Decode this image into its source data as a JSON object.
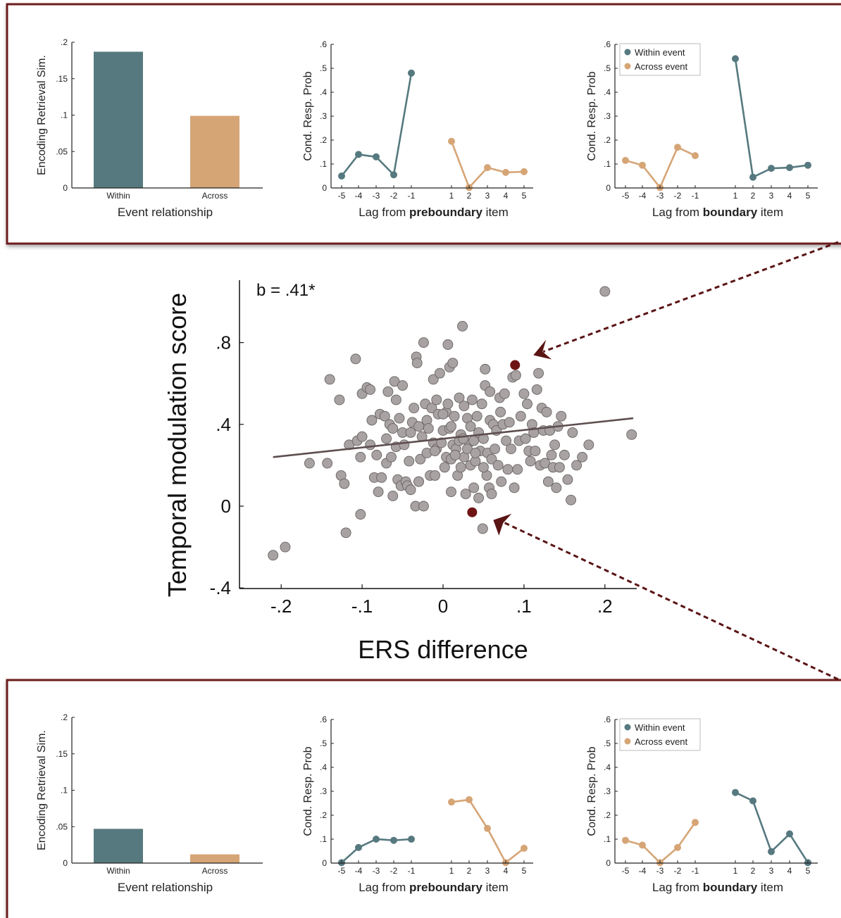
{
  "colors": {
    "within": "#56797f",
    "across": "#d6a576",
    "point": "#a9a2a2",
    "highlight": "#6e1414",
    "fit_line": "#5e4e4f",
    "frame": "#6e1c1c",
    "arrow": "#5a1414"
  },
  "chart_data": [
    {
      "panel": "top-bar",
      "type": "bar",
      "categories": [
        "Within",
        "Across"
      ],
      "values": [
        0.187,
        0.099
      ],
      "xlabel": "Event relationship",
      "ylabel": "Encoding Retrieval Sim.",
      "ylim": [
        0,
        0.2
      ],
      "yticks": [
        "0",
        ".05",
        ".1",
        ".15",
        ".2"
      ]
    },
    {
      "panel": "top-preboundary",
      "type": "line",
      "xlabel_prefix": "Lag from ",
      "xlabel_bold": "preboundary",
      "xlabel_suffix": " item",
      "ylabel": "Cond. Resp. Prob",
      "ylim": [
        0,
        0.6
      ],
      "yticks": [
        "0",
        ".1",
        ".2",
        ".3",
        ".4",
        ".5",
        ".6"
      ],
      "series": [
        {
          "group": "within",
          "x": [
            -5,
            -4,
            -3,
            -2,
            -1
          ],
          "values": [
            0.05,
            0.14,
            0.13,
            0.055,
            0.48
          ]
        },
        {
          "group": "across",
          "x": [
            1,
            2,
            3,
            4,
            5
          ],
          "values": [
            0.195,
            0.002,
            0.085,
            0.065,
            0.068
          ]
        }
      ]
    },
    {
      "panel": "top-boundary",
      "type": "line",
      "xlabel_prefix": "Lag from ",
      "xlabel_bold": "boundary",
      "xlabel_suffix": " item",
      "ylabel": "Cond. Resp. Prob",
      "ylim": [
        0,
        0.6
      ],
      "yticks": [
        "0",
        ".1",
        ".2",
        ".3",
        ".4",
        ".5",
        ".6"
      ],
      "legend": [
        "Within event",
        "Across event"
      ],
      "legend_position": "top-left",
      "series": [
        {
          "group": "across",
          "x": [
            -5,
            -4,
            -3,
            -2,
            -1
          ],
          "values": [
            0.115,
            0.095,
            0.002,
            0.17,
            0.135
          ]
        },
        {
          "group": "within",
          "x": [
            1,
            2,
            3,
            4,
            5
          ],
          "values": [
            0.54,
            0.045,
            0.082,
            0.085,
            0.095
          ]
        }
      ]
    },
    {
      "panel": "main-scatter",
      "type": "scatter",
      "xlabel": "ERS difference",
      "ylabel": "Temporal modulation score",
      "xlim": [
        -0.25,
        0.25
      ],
      "ylim": [
        -0.4,
        1.1
      ],
      "xticks": [
        "-.2",
        "-.1",
        "0",
        ".1",
        ".2"
      ],
      "yticks": [
        "-.4",
        "0",
        ".4",
        ".8"
      ],
      "annotation": "b = .41*",
      "fit_line": {
        "x": [
          -0.21,
          0.235
        ],
        "y": [
          0.24,
          0.43
        ]
      },
      "highlight_points": [
        [
          0.089,
          0.69
        ],
        [
          0.036,
          -0.03
        ]
      ],
      "points": [
        [
          -0.21,
          -0.24
        ],
        [
          -0.195,
          -0.2
        ],
        [
          -0.165,
          0.21
        ],
        [
          -0.143,
          0.21
        ],
        [
          -0.14,
          0.62
        ],
        [
          -0.128,
          0.52
        ],
        [
          -0.126,
          0.15
        ],
        [
          -0.122,
          0.11
        ],
        [
          -0.12,
          -0.13
        ],
        [
          -0.116,
          0.3
        ],
        [
          -0.108,
          0.72
        ],
        [
          -0.106,
          0.32
        ],
        [
          -0.102,
          0.24
        ],
        [
          -0.1,
          0.34
        ],
        [
          -0.102,
          -0.04
        ],
        [
          -0.1,
          0.55
        ],
        [
          -0.094,
          0.58
        ],
        [
          -0.09,
          0.57
        ],
        [
          -0.09,
          0.3
        ],
        [
          -0.088,
          0.42
        ],
        [
          -0.085,
          0.14
        ],
        [
          -0.082,
          0.25
        ],
        [
          -0.08,
          0.07
        ],
        [
          -0.078,
          0.45
        ],
        [
          -0.076,
          0.14
        ],
        [
          -0.072,
          0.44
        ],
        [
          -0.07,
          0.33
        ],
        [
          -0.07,
          0.21
        ],
        [
          -0.068,
          0.56
        ],
        [
          -0.066,
          0.4
        ],
        [
          -0.064,
          0.24
        ],
        [
          -0.062,
          0.38
        ],
        [
          -0.062,
          0.05
        ],
        [
          -0.06,
          0.61
        ],
        [
          -0.058,
          0.52
        ],
        [
          -0.058,
          0.29
        ],
        [
          -0.056,
          0.13
        ],
        [
          -0.054,
          0.43
        ],
        [
          -0.052,
          0.1
        ],
        [
          -0.05,
          0.59
        ],
        [
          -0.05,
          0.36
        ],
        [
          -0.048,
          0.3
        ],
        [
          -0.046,
          0.12
        ],
        [
          -0.044,
          0.1
        ],
        [
          -0.042,
          0.22
        ],
        [
          -0.04,
          0.08
        ],
        [
          -0.04,
          0.36
        ],
        [
          -0.038,
          0.41
        ],
        [
          -0.036,
          0.48
        ],
        [
          -0.034,
          0.0
        ],
        [
          -0.033,
          0.73
        ],
        [
          -0.032,
          0.7
        ],
        [
          -0.03,
          0.12
        ],
        [
          -0.03,
          0.39
        ],
        [
          -0.028,
          0.23
        ],
        [
          -0.026,
          0.34
        ],
        [
          -0.024,
          0.8
        ],
        [
          -0.024,
          0.0
        ],
        [
          -0.022,
          0.5
        ],
        [
          -0.02,
          0.42
        ],
        [
          -0.02,
          0.26
        ],
        [
          -0.018,
          0.38
        ],
        [
          -0.016,
          0.15
        ],
        [
          -0.014,
          0.48
        ],
        [
          -0.012,
          0.62
        ],
        [
          -0.012,
          0.31
        ],
        [
          -0.01,
          0.15
        ],
        [
          -0.008,
          0.52
        ],
        [
          -0.008,
          0.28
        ],
        [
          -0.006,
          0.45
        ],
        [
          -0.004,
          0.65
        ],
        [
          -0.002,
          0.31
        ],
        [
          0.0,
          0.37
        ],
        [
          0.002,
          0.19
        ],
        [
          0.004,
          0.46
        ],
        [
          0.004,
          0.24
        ],
        [
          0.006,
          0.79
        ],
        [
          0.006,
          0.5
        ],
        [
          0.008,
          0.68
        ],
        [
          0.008,
          0.38
        ],
        [
          0.01,
          0.23
        ],
        [
          0.01,
          0.07
        ],
        [
          0.012,
          0.7
        ],
        [
          0.012,
          0.3
        ],
        [
          0.014,
          0.44
        ],
        [
          0.016,
          0.28
        ],
        [
          0.018,
          0.15
        ],
        [
          0.02,
          0.53
        ],
        [
          0.022,
          0.19
        ],
        [
          0.022,
          0.35
        ],
        [
          0.024,
          0.88
        ],
        [
          0.026,
          0.49
        ],
        [
          0.026,
          0.24
        ],
        [
          0.028,
          0.06
        ],
        [
          0.03,
          0.43
        ],
        [
          0.032,
          0.31
        ],
        [
          0.034,
          0.2
        ],
        [
          0.034,
          0.39
        ],
        [
          0.036,
          0.52
        ],
        [
          0.038,
          0.32
        ],
        [
          0.038,
          0.09
        ],
        [
          0.04,
          0.22
        ],
        [
          0.042,
          0.44
        ],
        [
          0.044,
          0.36
        ],
        [
          0.044,
          0.04
        ],
        [
          0.046,
          0.27
        ],
        [
          0.048,
          0.5
        ],
        [
          0.05,
          0.33
        ],
        [
          0.052,
          0.67
        ],
        [
          0.052,
          0.59
        ],
        [
          0.054,
          0.15
        ],
        [
          0.055,
          0.26
        ],
        [
          0.057,
          0.09
        ],
        [
          0.058,
          0.42
        ],
        [
          0.058,
          0.56
        ],
        [
          0.06,
          0.23
        ],
        [
          0.06,
          0.06
        ],
        [
          0.062,
          0.4
        ],
        [
          0.064,
          0.28
        ],
        [
          0.066,
          0.37
        ],
        [
          0.068,
          0.2
        ],
        [
          0.07,
          0.53
        ],
        [
          0.071,
          0.46
        ],
        [
          0.072,
          0.12
        ],
        [
          0.074,
          0.4
        ],
        [
          0.076,
          0.55
        ],
        [
          0.078,
          0.32
        ],
        [
          0.08,
          0.18
        ],
        [
          0.082,
          0.41
        ],
        [
          0.084,
          0.28
        ],
        [
          0.086,
          0.63
        ],
        [
          0.088,
          0.09
        ],
        [
          0.09,
          0.64
        ],
        [
          0.092,
          0.18
        ],
        [
          0.094,
          0.32
        ],
        [
          0.096,
          0.44
        ],
        [
          0.1,
          0.55
        ],
        [
          0.102,
          0.33
        ],
        [
          0.104,
          0.5
        ],
        [
          0.106,
          0.27
        ],
        [
          0.108,
          0.22
        ],
        [
          0.11,
          0.4
        ],
        [
          0.112,
          0.36
        ],
        [
          0.114,
          0.27
        ],
        [
          0.116,
          0.57
        ],
        [
          0.118,
          0.65
        ],
        [
          0.12,
          0.2
        ],
        [
          0.122,
          0.48
        ],
        [
          0.124,
          0.37
        ],
        [
          0.126,
          0.21
        ],
        [
          0.128,
          0.46
        ],
        [
          0.13,
          0.12
        ],
        [
          0.132,
          0.37
        ],
        [
          0.134,
          0.25
        ],
        [
          0.136,
          0.19
        ],
        [
          0.138,
          0.3
        ],
        [
          0.14,
          0.09
        ],
        [
          0.142,
          0.39
        ],
        [
          0.144,
          0.19
        ],
        [
          0.146,
          0.44
        ],
        [
          0.15,
          0.25
        ],
        [
          0.154,
          0.13
        ],
        [
          0.158,
          0.03
        ],
        [
          0.16,
          0.36
        ],
        [
          0.165,
          0.2
        ],
        [
          0.172,
          0.24
        ],
        [
          0.18,
          0.3
        ],
        [
          0.2,
          1.05
        ],
        [
          0.233,
          0.35
        ],
        [
          0.049,
          -0.11
        ],
        [
          -0.03,
          0.12
        ],
        [
          -0.01,
          0.27
        ],
        [
          0.02,
          0.32
        ],
        [
          0.03,
          0.28
        ],
        [
          0.0,
          0.45
        ],
        [
          0.01,
          0.39
        ],
        [
          0.04,
          0.26
        ],
        [
          0.05,
          0.19
        ],
        [
          0.025,
          0.33
        ],
        [
          0.015,
          0.25
        ]
      ]
    },
    {
      "panel": "bottom-bar",
      "type": "bar",
      "categories": [
        "Within",
        "Across"
      ],
      "values": [
        0.047,
        0.012
      ],
      "xlabel": "Event relationship",
      "ylabel": "Encoding Retrieval Sim.",
      "ylim": [
        0,
        0.2
      ],
      "yticks": [
        "0",
        ".05",
        ".1",
        ".15",
        ".2"
      ]
    },
    {
      "panel": "bottom-preboundary",
      "type": "line",
      "xlabel_prefix": "Lag from ",
      "xlabel_bold": "preboundary",
      "xlabel_suffix": " item",
      "ylabel": "Cond. Resp. Prob",
      "ylim": [
        0,
        0.6
      ],
      "yticks": [
        "0",
        ".1",
        ".2",
        ".3",
        ".4",
        ".5",
        ".6"
      ],
      "series": [
        {
          "group": "within",
          "x": [
            -5,
            -4,
            -3,
            -2,
            -1
          ],
          "values": [
            0.002,
            0.065,
            0.1,
            0.095,
            0.1
          ]
        },
        {
          "group": "across",
          "x": [
            1,
            2,
            3,
            4,
            5
          ],
          "values": [
            0.255,
            0.265,
            0.145,
            0.002,
            0.062
          ]
        }
      ]
    },
    {
      "panel": "bottom-boundary",
      "type": "line",
      "xlabel_prefix": "Lag from ",
      "xlabel_bold": "boundary",
      "xlabel_suffix": " item",
      "ylabel": "Cond. Resp. Prob",
      "ylim": [
        0,
        0.6
      ],
      "yticks": [
        "0",
        ".1",
        ".2",
        ".3",
        ".4",
        ".5",
        ".6"
      ],
      "legend": [
        "Within event",
        "Across event"
      ],
      "legend_position": "top-left",
      "series": [
        {
          "group": "across",
          "x": [
            -5,
            -4,
            -3,
            -2,
            -1
          ],
          "values": [
            0.095,
            0.075,
            0.002,
            0.065,
            0.17
          ]
        },
        {
          "group": "within",
          "x": [
            1,
            2,
            3,
            4,
            5
          ],
          "values": [
            0.295,
            0.26,
            0.048,
            0.122,
            0.002
          ]
        }
      ]
    }
  ]
}
